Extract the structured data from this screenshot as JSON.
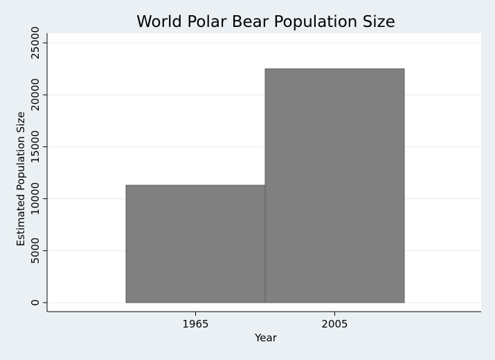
{
  "chart_data": {
    "type": "bar",
    "title": "World Polar Bear Population Size",
    "xlabel": "Year",
    "ylabel": "Estimated Population Size",
    "categories": [
      "1965",
      "2005"
    ],
    "values": [
      11300,
      22500
    ],
    "ylim": [
      0,
      25000
    ],
    "yticks": [
      0,
      5000,
      10000,
      15000,
      20000,
      25000
    ],
    "grid": true,
    "legend": "none",
    "colors": {
      "bar_fill": "#808080",
      "bar_stroke": "#5f5f5f",
      "plot_bg": "#ffffff",
      "outer_bg": "#eaf0f3",
      "grid": "#e6e9ec",
      "axis": "#000000"
    }
  }
}
